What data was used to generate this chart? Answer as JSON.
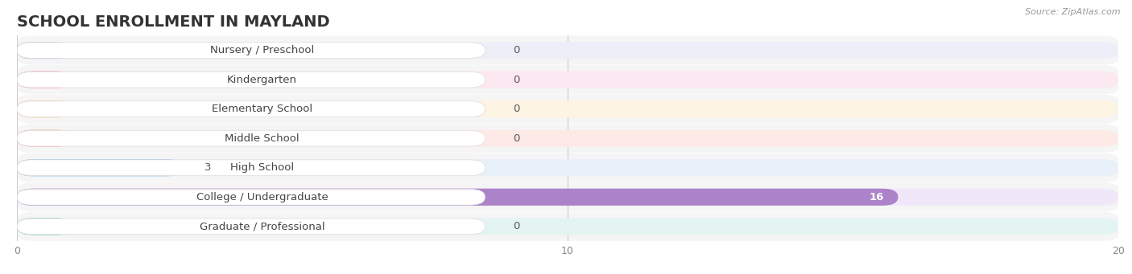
{
  "title": "SCHOOL ENROLLMENT IN MAYLAND",
  "source": "Source: ZipAtlas.com",
  "categories": [
    "Nursery / Preschool",
    "Kindergarten",
    "Elementary School",
    "Middle School",
    "High School",
    "College / Undergraduate",
    "Graduate / Professional"
  ],
  "values": [
    0,
    0,
    0,
    0,
    3,
    16,
    0
  ],
  "bar_colors": [
    "#9fa8d8",
    "#f09ab0",
    "#f5bf80",
    "#eeaaa0",
    "#96b8e0",
    "#ac82c8",
    "#6ec0b8"
  ],
  "bg_colors": [
    "#eceef8",
    "#fce8f0",
    "#fef4e4",
    "#fdeae6",
    "#e8f0fa",
    "#f0e8f8",
    "#e4f4f2"
  ],
  "row_bg": "#f5f5f5",
  "xlim": [
    0,
    20
  ],
  "xticks": [
    0,
    10,
    20
  ],
  "title_fontsize": 14,
  "label_fontsize": 9.5,
  "value_fontsize": 9.5,
  "figure_bg": "#ffffff"
}
